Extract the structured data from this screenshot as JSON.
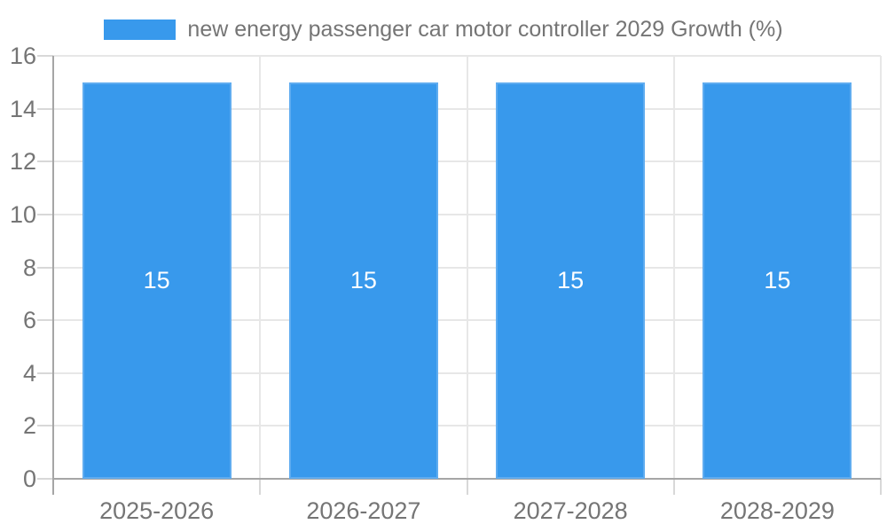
{
  "legend": {
    "label": "new energy passenger car motor controller 2029 Growth (%)"
  },
  "chart_data": {
    "type": "bar",
    "title": "",
    "xlabel": "",
    "ylabel": "",
    "categories": [
      "2025-2026",
      "2026-2027",
      "2027-2028",
      "2028-2029"
    ],
    "series": [
      {
        "name": "new energy passenger car motor controller 2029 Growth (%)",
        "values": [
          15,
          15,
          15,
          15
        ]
      }
    ],
    "bar_value_labels": [
      "15",
      "15",
      "15",
      "15"
    ],
    "ylim": [
      0,
      16
    ],
    "yticks": [
      0,
      2,
      4,
      6,
      8,
      10,
      12,
      14,
      16
    ],
    "grid": true,
    "legend_position": "top-center",
    "colors": {
      "bar_fill": "#3899EC",
      "bar_edge": "#5FACF0",
      "gridline": "#e7e7e7",
      "tick": "#d8d8d8",
      "axis_line": "#a6a6a6",
      "label_text": "#757575",
      "bar_label_text": "#ffffff",
      "background": "#ffffff"
    }
  }
}
